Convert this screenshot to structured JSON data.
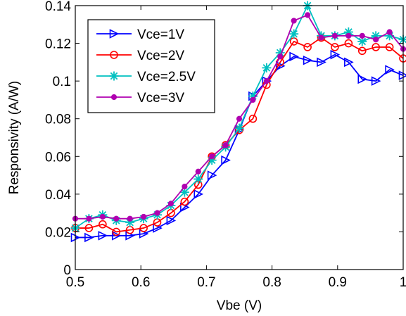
{
  "chart_data": {
    "type": "line",
    "title": "",
    "xlabel": "Vbe (V)",
    "ylabel": "Responsivity (A/W)",
    "xlim": [
      0.5,
      1.0
    ],
    "ylim": [
      0,
      0.14
    ],
    "xticks": [
      0.5,
      0.6,
      0.7,
      0.8,
      0.9,
      1.0
    ],
    "xtick_labels": [
      "0.5",
      "0.6",
      "0.7",
      "0.8",
      "0.9",
      "1"
    ],
    "yticks": [
      0,
      0.02,
      0.04,
      0.06,
      0.08,
      0.1,
      0.12,
      0.14
    ],
    "ytick_labels": [
      "0",
      "0.02",
      "0.04",
      "0.06",
      "0.08",
      "0.1",
      "0.12",
      "0.14"
    ],
    "grid": false,
    "legend_position": "top-left",
    "x": [
      0.5,
      0.5208,
      0.5417,
      0.5625,
      0.5833,
      0.6042,
      0.625,
      0.6458,
      0.6667,
      0.6875,
      0.7083,
      0.7292,
      0.75,
      0.7708,
      0.7917,
      0.8125,
      0.8333,
      0.8542,
      0.875,
      0.8958,
      0.9167,
      0.9375,
      0.9583,
      0.9792,
      1.0
    ],
    "series": [
      {
        "name": "Vce=1V",
        "color": "#0000ff",
        "marker": "triangle-right",
        "values": [
          0.017,
          0.017,
          0.018,
          0.018,
          0.018,
          0.019,
          0.022,
          0.026,
          0.033,
          0.04,
          0.05,
          0.058,
          0.074,
          0.092,
          0.1,
          0.108,
          0.113,
          0.111,
          0.11,
          0.114,
          0.11,
          0.101,
          0.1,
          0.106,
          0.103
        ]
      },
      {
        "name": "Vce=2V",
        "color": "#ff0000",
        "marker": "circle",
        "values": [
          0.022,
          0.022,
          0.024,
          0.02,
          0.021,
          0.022,
          0.025,
          0.03,
          0.036,
          0.045,
          0.06,
          0.066,
          0.074,
          0.08,
          0.098,
          0.11,
          0.121,
          0.118,
          0.123,
          0.118,
          0.12,
          0.116,
          0.118,
          0.118,
          0.112
        ]
      },
      {
        "name": "Vce=2.5V",
        "color": "#00c0c0",
        "marker": "star",
        "values": [
          0.022,
          0.027,
          0.029,
          0.026,
          0.025,
          0.027,
          0.029,
          0.034,
          0.041,
          0.048,
          0.058,
          0.065,
          0.075,
          0.092,
          0.107,
          0.115,
          0.125,
          0.14,
          0.124,
          0.124,
          0.126,
          0.121,
          0.124,
          0.124,
          0.122
        ]
      },
      {
        "name": "Vce=3V",
        "color": "#b000b0",
        "marker": "dot",
        "values": [
          0.027,
          0.027,
          0.028,
          0.027,
          0.027,
          0.028,
          0.03,
          0.035,
          0.044,
          0.052,
          0.06,
          0.066,
          0.08,
          0.09,
          0.1,
          0.113,
          0.132,
          0.135,
          0.123,
          0.124,
          0.124,
          0.124,
          0.122,
          0.126,
          0.117
        ]
      }
    ]
  }
}
